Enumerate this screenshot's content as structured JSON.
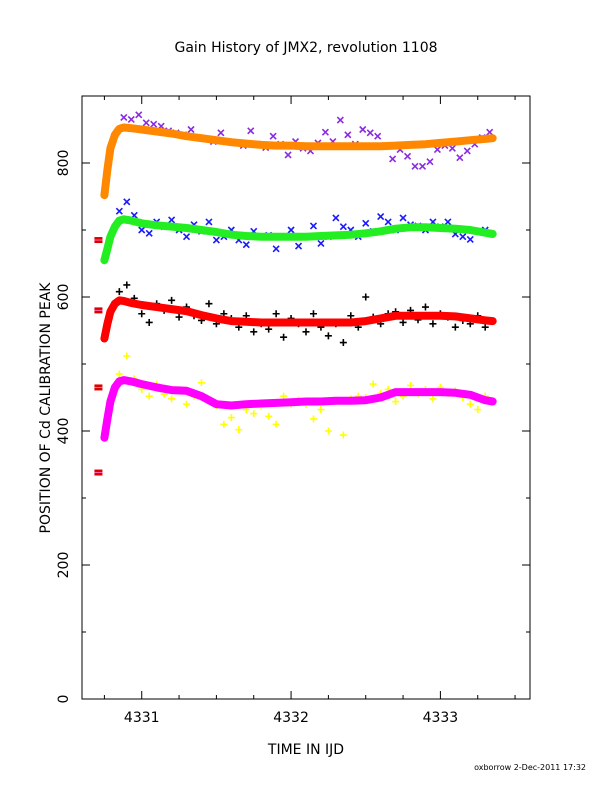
{
  "chart_data": {
    "type": "scatter",
    "title": "Gain History of JMX2, revolution 1108",
    "xlabel": "TIME IN IJD",
    "ylabel": "POSITION OF Cd CALIBRATION PEAK",
    "xlim": [
      4330.6,
      4333.6
    ],
    "ylim": [
      0,
      900
    ],
    "x_ticks": [
      4331,
      4332,
      4333
    ],
    "y_ticks": [
      0,
      200,
      400,
      600,
      800
    ],
    "grid": false,
    "legend": "none",
    "series": [
      {
        "color": "#8a2be2",
        "marker": "x",
        "x": [
          4330.88,
          4330.93,
          4330.98,
          4331.03,
          4331.08,
          4331.13,
          4331.18,
          4331.23,
          4331.28,
          4331.33,
          4331.38,
          4331.43,
          4331.48,
          4331.53,
          4331.58,
          4331.63,
          4331.68,
          4331.73,
          4331.78,
          4331.83,
          4331.88,
          4331.93,
          4331.98,
          4332.03,
          4332.08,
          4332.13,
          4332.18,
          4332.23,
          4332.28,
          4332.33,
          4332.38,
          4332.43,
          4332.48,
          4332.53,
          4332.58,
          4332.63,
          4332.68,
          4332.73,
          4332.78,
          4332.83,
          4332.88,
          4332.93,
          4332.98,
          4333.03,
          4333.08,
          4333.13,
          4333.18,
          4333.23,
          4333.28,
          4333.33
        ],
        "y": [
          868,
          865,
          872,
          860,
          858,
          855,
          848,
          845,
          842,
          850,
          838,
          836,
          832,
          845,
          832,
          830,
          826,
          848,
          828,
          823,
          840,
          828,
          812,
          832,
          822,
          818,
          830,
          846,
          832,
          864,
          842,
          828,
          850,
          845,
          840,
          826,
          806,
          820,
          810,
          795,
          795,
          802,
          820,
          826,
          822,
          808,
          818,
          828,
          838,
          846
        ]
      },
      {
        "color": "#ff8800",
        "marker": "line",
        "x": [
          4330.75,
          4330.77,
          4330.79,
          4330.82,
          4330.85,
          4330.88,
          4330.93,
          4331.0,
          4331.1,
          4331.2,
          4331.3,
          4331.4,
          4331.5,
          4331.6,
          4331.7,
          4331.8,
          4331.9,
          4332.0,
          4332.1,
          4332.2,
          4332.3,
          4332.4,
          4332.5,
          4332.6,
          4332.7,
          4332.8,
          4332.9,
          4333.0,
          4333.1,
          4333.2,
          4333.3,
          4333.35
        ],
        "y": [
          752,
          790,
          822,
          842,
          851,
          853,
          852,
          850,
          847,
          844,
          840,
          837,
          834,
          831,
          829,
          827,
          826,
          826,
          825,
          825,
          825,
          825,
          825,
          825,
          826,
          827,
          828,
          830,
          832,
          834,
          836,
          837
        ]
      },
      {
        "color": "#1a1aff",
        "marker": "x",
        "x": [
          4330.85,
          4330.9,
          4330.95,
          4331.0,
          4331.05,
          4331.1,
          4331.15,
          4331.2,
          4331.25,
          4331.3,
          4331.35,
          4331.4,
          4331.45,
          4331.5,
          4331.55,
          4331.6,
          4331.65,
          4331.7,
          4331.75,
          4331.8,
          4331.85,
          4331.9,
          4331.95,
          4332.0,
          4332.05,
          4332.1,
          4332.15,
          4332.2,
          4332.25,
          4332.3,
          4332.35,
          4332.4,
          4332.45,
          4332.5,
          4332.55,
          4332.6,
          4332.65,
          4332.7,
          4332.75,
          4332.8,
          4332.85,
          4332.9,
          4332.95,
          4333.0,
          4333.05,
          4333.1,
          4333.15,
          4333.2,
          4333.25,
          4333.3
        ],
        "y": [
          728,
          742,
          722,
          700,
          695,
          712,
          705,
          715,
          700,
          690,
          708,
          698,
          712,
          685,
          690,
          700,
          685,
          678,
          698,
          690,
          692,
          672,
          690,
          700,
          676,
          690,
          706,
          680,
          690,
          718,
          705,
          700,
          690,
          710,
          698,
          720,
          712,
          700,
          718,
          708,
          706,
          700,
          712,
          705,
          712,
          694,
          690,
          686,
          698,
          700
        ]
      },
      {
        "color": "#22ee22",
        "marker": "line",
        "x": [
          4330.75,
          4330.77,
          4330.79,
          4330.82,
          4330.85,
          4330.88,
          4330.93,
          4331.0,
          4331.1,
          4331.2,
          4331.3,
          4331.4,
          4331.5,
          4331.6,
          4331.7,
          4331.8,
          4331.9,
          4332.0,
          4332.1,
          4332.2,
          4332.3,
          4332.4,
          4332.5,
          4332.6,
          4332.7,
          4332.8,
          4332.9,
          4333.0,
          4333.1,
          4333.2,
          4333.3,
          4333.35
        ],
        "y": [
          655,
          672,
          690,
          705,
          714,
          716,
          714,
          710,
          707,
          705,
          703,
          700,
          697,
          693,
          691,
          690,
          690,
          690,
          690,
          691,
          692,
          693,
          695,
          698,
          702,
          704,
          704,
          703,
          702,
          700,
          696,
          694
        ]
      },
      {
        "color": "#000000",
        "marker": "+",
        "x": [
          4330.85,
          4330.9,
          4330.95,
          4331.0,
          4331.05,
          4331.1,
          4331.15,
          4331.2,
          4331.25,
          4331.3,
          4331.35,
          4331.4,
          4331.45,
          4331.5,
          4331.55,
          4331.6,
          4331.65,
          4331.7,
          4331.75,
          4331.8,
          4331.85,
          4331.9,
          4331.95,
          4332.0,
          4332.05,
          4332.1,
          4332.15,
          4332.2,
          4332.25,
          4332.3,
          4332.35,
          4332.4,
          4332.45,
          4332.5,
          4332.55,
          4332.6,
          4332.65,
          4332.7,
          4332.75,
          4332.8,
          4332.85,
          4332.9,
          4332.95,
          4333.0,
          4333.05,
          4333.1,
          4333.15,
          4333.2,
          4333.25,
          4333.3
        ],
        "y": [
          608,
          618,
          598,
          575,
          562,
          590,
          580,
          595,
          570,
          585,
          572,
          565,
          590,
          560,
          575,
          568,
          555,
          572,
          548,
          560,
          552,
          575,
          540,
          568,
          560,
          548,
          575,
          555,
          542,
          560,
          532,
          572,
          555,
          600,
          570,
          560,
          575,
          578,
          562,
          580,
          566,
          585,
          560,
          575,
          570,
          555,
          565,
          560,
          572,
          555
        ]
      },
      {
        "color": "#ff0000",
        "marker": "line",
        "x": [
          4330.75,
          4330.77,
          4330.79,
          4330.82,
          4330.85,
          4330.88,
          4330.93,
          4331.0,
          4331.1,
          4331.2,
          4331.3,
          4331.4,
          4331.5,
          4331.6,
          4331.7,
          4331.8,
          4331.9,
          4332.0,
          4332.1,
          4332.2,
          4332.3,
          4332.4,
          4332.5,
          4332.6,
          4332.7,
          4332.8,
          4332.9,
          4333.0,
          4333.1,
          4333.2,
          4333.3,
          4333.35
        ],
        "y": [
          538,
          560,
          578,
          590,
          595,
          594,
          591,
          588,
          585,
          582,
          579,
          573,
          568,
          564,
          563,
          562,
          562,
          562,
          562,
          562,
          562,
          562,
          564,
          568,
          572,
          572,
          572,
          572,
          571,
          568,
          565,
          564
        ]
      },
      {
        "color": "#ffff00",
        "marker": "+",
        "x": [
          4330.85,
          4330.9,
          4330.95,
          4331.0,
          4331.05,
          4331.1,
          4331.15,
          4331.2,
          4331.25,
          4331.3,
          4331.35,
          4331.4,
          4331.45,
          4331.5,
          4331.55,
          4331.6,
          4331.65,
          4331.7,
          4331.75,
          4331.8,
          4331.85,
          4331.9,
          4331.95,
          4332.0,
          4332.05,
          4332.1,
          4332.15,
          4332.2,
          4332.25,
          4332.3,
          4332.35,
          4332.4,
          4332.45,
          4332.5,
          4332.55,
          4332.6,
          4332.65,
          4332.7,
          4332.75,
          4332.8,
          4332.85,
          4332.9,
          4332.95,
          4333.0,
          4333.05,
          4333.1,
          4333.15,
          4333.2,
          4333.25,
          4333.3
        ],
        "y": [
          485,
          512,
          478,
          462,
          452,
          470,
          455,
          448,
          462,
          440,
          452,
          472,
          446,
          438,
          410,
          420,
          402,
          432,
          426,
          438,
          422,
          410,
          452,
          440,
          446,
          440,
          418,
          432,
          400,
          444,
          394,
          448,
          452,
          450,
          470,
          456,
          462,
          444,
          452,
          468,
          455,
          462,
          448,
          465,
          456,
          460,
          450,
          440,
          432,
          452
        ]
      },
      {
        "color": "#ff00ff",
        "marker": "line",
        "x": [
          4330.75,
          4330.77,
          4330.79,
          4330.82,
          4330.85,
          4330.88,
          4330.93,
          4331.0,
          4331.1,
          4331.2,
          4331.3,
          4331.4,
          4331.5,
          4331.6,
          4331.7,
          4331.8,
          4331.9,
          4332.0,
          4332.1,
          4332.2,
          4332.3,
          4332.4,
          4332.5,
          4332.6,
          4332.7,
          4332.8,
          4332.9,
          4333.0,
          4333.1,
          4333.2,
          4333.3,
          4333.35
        ],
        "y": [
          390,
          418,
          444,
          465,
          474,
          476,
          474,
          470,
          465,
          461,
          460,
          452,
          440,
          438,
          440,
          441,
          442,
          443,
          444,
          444,
          445,
          445,
          446,
          450,
          458,
          458,
          458,
          458,
          457,
          454,
          446,
          444
        ]
      },
      {
        "color": "#dd0000",
        "marker": "square",
        "x": [
          4330.71,
          4330.71,
          4330.71,
          4330.71
        ],
        "y": [
          685,
          580,
          465,
          338
        ]
      }
    ]
  },
  "footer": {
    "credit": "oxborrow  2-Dec-2011 17:32"
  }
}
